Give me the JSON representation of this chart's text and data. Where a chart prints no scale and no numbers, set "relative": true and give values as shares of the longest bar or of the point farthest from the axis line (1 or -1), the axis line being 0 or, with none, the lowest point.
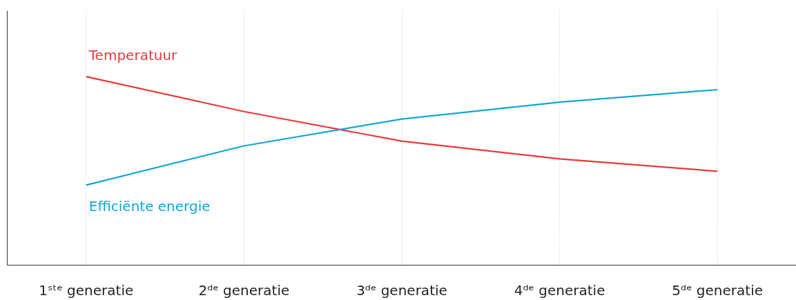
{
  "chart_data": {
    "type": "line",
    "relative": true,
    "categories": [
      "1ˢᵗᵉ generatie",
      "2ᵈᵉ generatie",
      "3ᵈᵉ generatie",
      "4ᵈᵉ generatie",
      "5ᵈᵉ generatie"
    ],
    "series": [
      {
        "name": "Temperatuur",
        "color": "#e8393a",
        "values": [
          1,
          0.815,
          0.658,
          0.564,
          0.498
        ]
      },
      {
        "name": "Efficiënte energie",
        "color": "#12a5d6",
        "values": [
          0.425,
          0.633,
          0.775,
          0.865,
          0.931
        ]
      }
    ],
    "grid": "x",
    "marker": "none",
    "line_style": "solid"
  }
}
